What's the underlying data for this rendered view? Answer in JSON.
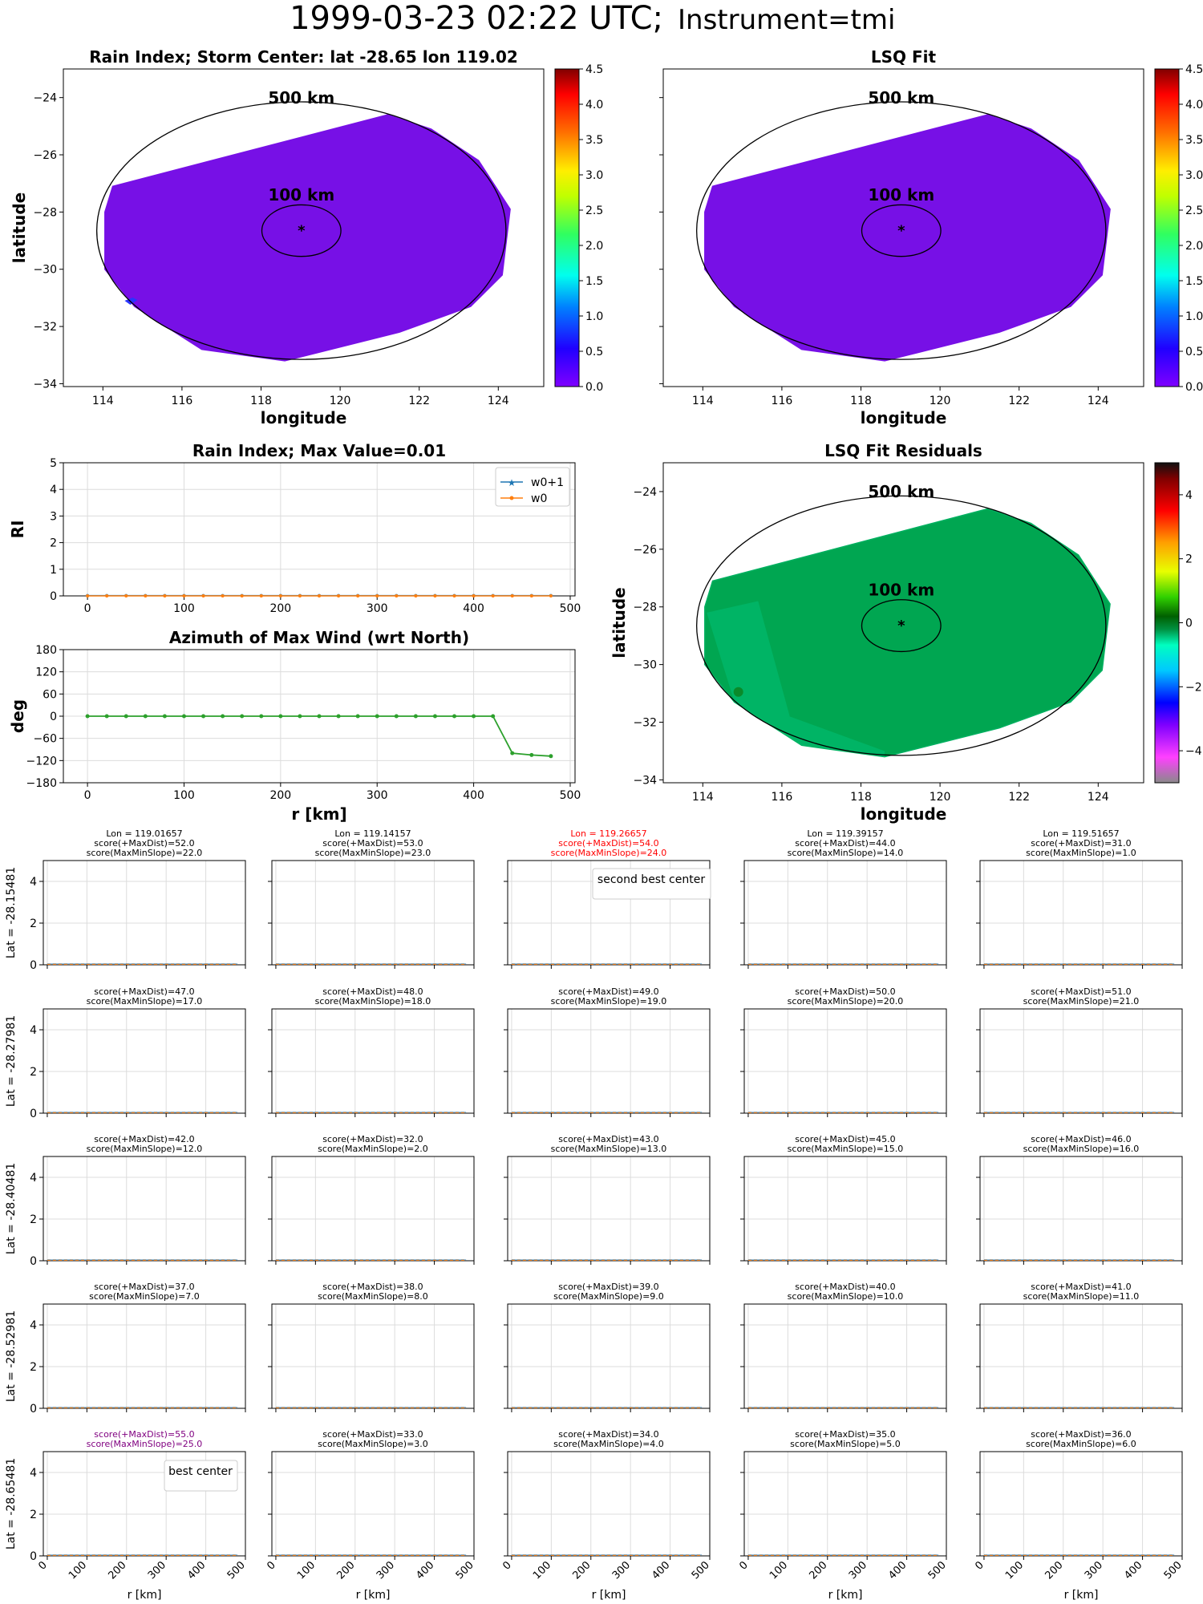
{
  "title_main": "1999-03-23 02:22 UTC;",
  "title_instrument": "Instrument=tmi",
  "colors": {
    "rain_fill": "#7710e6",
    "residual_fill": "#00a651",
    "residual_edge": "#00b060",
    "w0p1": "#1f77b4",
    "w0": "#ff7f0e",
    "az_line": "#2ca02c",
    "highlight_red": "#ff0000",
    "highlight_purple": "#800080"
  },
  "maps": {
    "rain": {
      "title": "Rain Index; Storm Center: lat -28.65 lon 119.02",
      "xlabel": "longitude",
      "ylabel": "latitude",
      "ring_outer": "500 km",
      "ring_inner": "100 km",
      "center": {
        "lon": 119.02,
        "lat": -28.65
      }
    },
    "lsq": {
      "title": "LSQ Fit",
      "xlabel": "longitude",
      "ring_outer": "500 km",
      "ring_inner": "100 km"
    },
    "resid": {
      "title": "LSQ Fit Residuals",
      "xlabel": "longitude",
      "ylabel": "latitude",
      "ring_outer": "500 km",
      "ring_inner": "100 km"
    }
  },
  "chart_data": [
    {
      "type": "line",
      "title": "Rain Index; Max Value=0.01",
      "ylabel": "RI",
      "xlim": [
        -25,
        505
      ],
      "ylim": [
        0,
        5
      ],
      "xticks": [
        0,
        100,
        200,
        300,
        400,
        500
      ],
      "yticks": [
        0,
        1,
        2,
        3,
        4,
        5
      ],
      "legend": "top-right",
      "x": [
        0,
        20,
        40,
        60,
        80,
        100,
        120,
        140,
        160,
        180,
        200,
        220,
        240,
        260,
        280,
        300,
        320,
        340,
        360,
        380,
        400,
        420,
        440,
        460,
        480
      ],
      "series": [
        {
          "name": "w0+1",
          "values": [
            0.01,
            0.01,
            0.01,
            0.01,
            0.01,
            0.01,
            0.01,
            0.01,
            0.01,
            0.01,
            0.01,
            0.01,
            0.01,
            0.01,
            0.01,
            0.01,
            0.01,
            0.01,
            0.01,
            0.01,
            0.01,
            0.01,
            0.01,
            0.01,
            0.01
          ]
        },
        {
          "name": "w0",
          "values": [
            0,
            0,
            0,
            0,
            0,
            0,
            0,
            0,
            0,
            0,
            0,
            0,
            0,
            0,
            0,
            0,
            0,
            0,
            0,
            0,
            0,
            0,
            0,
            0,
            0
          ]
        }
      ]
    },
    {
      "type": "line",
      "title": "Azimuth of Max Wind (wrt North)",
      "xlabel": "r [km]",
      "ylabel": "deg",
      "xlim": [
        -25,
        505
      ],
      "ylim": [
        -180,
        180
      ],
      "xticks": [
        0,
        100,
        200,
        300,
        400,
        500
      ],
      "yticks": [
        -180,
        -120,
        -60,
        0,
        60,
        120,
        180
      ],
      "x": [
        0,
        20,
        40,
        60,
        80,
        100,
        120,
        140,
        160,
        180,
        200,
        220,
        240,
        260,
        280,
        300,
        320,
        340,
        360,
        380,
        400,
        420,
        440,
        460,
        480
      ],
      "values": [
        0,
        0,
        0,
        0,
        0,
        0,
        0,
        0,
        0,
        0,
        0,
        0,
        0,
        0,
        0,
        0,
        0,
        0,
        0,
        0,
        0,
        0,
        -100,
        -105,
        -108
      ]
    },
    {
      "type": "bar",
      "title": "Rain Index colorbar",
      "ticks": [
        "0.0",
        "0.5",
        "1.0",
        "1.5",
        "2.0",
        "2.5",
        "3.0",
        "3.5",
        "4.0",
        "4.5"
      ],
      "range": [
        0,
        4.5
      ]
    },
    {
      "type": "bar",
      "title": "Residuals colorbar",
      "ticks": [
        "-4",
        "-2",
        "0",
        "2",
        "4"
      ],
      "range": [
        -5,
        5
      ]
    },
    {
      "type": "line",
      "title": "Center search grid",
      "xlabel": "r [km]",
      "xlim": [
        -10,
        500
      ],
      "ylim": [
        0,
        5
      ],
      "xticks": [
        0,
        100,
        200,
        300,
        400,
        500
      ],
      "yticks": [
        0,
        2,
        4
      ],
      "lons": [
        "Lon = 119.01657",
        "Lon = 119.14157",
        "Lon = 119.26657",
        "Lon = 119.39157",
        "Lon = 119.51657"
      ],
      "lats": [
        "Lat = -28.15481",
        "Lat = -28.27981",
        "Lat = -28.40481",
        "Lat = -28.52981",
        "Lat = -28.65481"
      ],
      "scores": [
        [
          [
            "score(+MaxDist)=52.0",
            "score(MaxMinSlope)=22.0"
          ],
          [
            "score(+MaxDist)=53.0",
            "score(MaxMinSlope)=23.0"
          ],
          [
            "score(+MaxDist)=54.0",
            "score(MaxMinSlope)=24.0"
          ],
          [
            "score(+MaxDist)=44.0",
            "score(MaxMinSlope)=14.0"
          ],
          [
            "score(+MaxDist)=31.0",
            "score(MaxMinSlope)=1.0"
          ]
        ],
        [
          [
            "score(+MaxDist)=47.0",
            "score(MaxMinSlope)=17.0"
          ],
          [
            "score(+MaxDist)=48.0",
            "score(MaxMinSlope)=18.0"
          ],
          [
            "score(+MaxDist)=49.0",
            "score(MaxMinSlope)=19.0"
          ],
          [
            "score(+MaxDist)=50.0",
            "score(MaxMinSlope)=20.0"
          ],
          [
            "score(+MaxDist)=51.0",
            "score(MaxMinSlope)=21.0"
          ]
        ],
        [
          [
            "score(+MaxDist)=42.0",
            "score(MaxMinSlope)=12.0"
          ],
          [
            "score(+MaxDist)=32.0",
            "score(MaxMinSlope)=2.0"
          ],
          [
            "score(+MaxDist)=43.0",
            "score(MaxMinSlope)=13.0"
          ],
          [
            "score(+MaxDist)=45.0",
            "score(MaxMinSlope)=15.0"
          ],
          [
            "score(+MaxDist)=46.0",
            "score(MaxMinSlope)=16.0"
          ]
        ],
        [
          [
            "score(+MaxDist)=37.0",
            "score(MaxMinSlope)=7.0"
          ],
          [
            "score(+MaxDist)=38.0",
            "score(MaxMinSlope)=8.0"
          ],
          [
            "score(+MaxDist)=39.0",
            "score(MaxMinSlope)=9.0"
          ],
          [
            "score(+MaxDist)=40.0",
            "score(MaxMinSlope)=10.0"
          ],
          [
            "score(+MaxDist)=41.0",
            "score(MaxMinSlope)=11.0"
          ]
        ],
        [
          [
            "score(+MaxDist)=55.0",
            "score(MaxMinSlope)=25.0"
          ],
          [
            "score(+MaxDist)=33.0",
            "score(MaxMinSlope)=3.0"
          ],
          [
            "score(+MaxDist)=34.0",
            "score(MaxMinSlope)=4.0"
          ],
          [
            "score(+MaxDist)=35.0",
            "score(MaxMinSlope)=5.0"
          ],
          [
            "score(+MaxDist)=36.0",
            "score(MaxMinSlope)=6.0"
          ]
        ]
      ],
      "second_best": {
        "row": 0,
        "col": 2,
        "label": "second best center"
      },
      "best": {
        "row": 4,
        "col": 0,
        "label": "best center"
      }
    }
  ]
}
